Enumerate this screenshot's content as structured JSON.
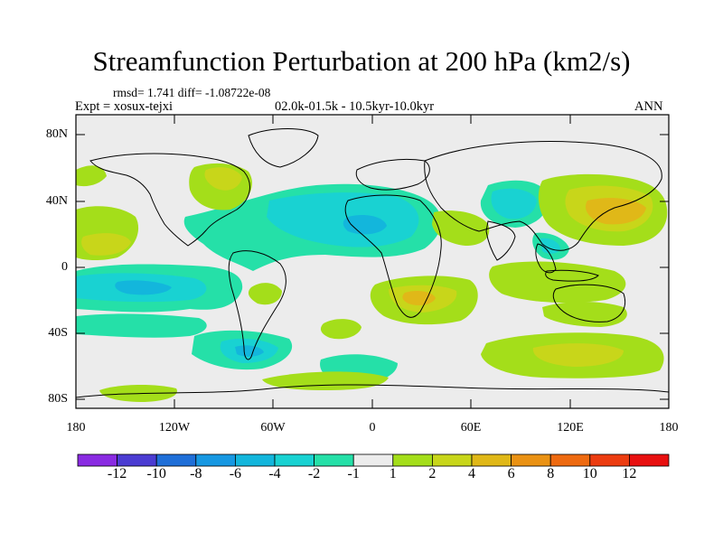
{
  "title": "Streamfunction Perturbation at 200 hPa (km2/s)",
  "stats_line": "rmsd= 1.741  diff= -1.08722e-08",
  "experiment": "Expt = xosux-tejxi",
  "period": "02.0k-01.5k - 10.5kyr-10.0kyr",
  "season": "ANN",
  "lat_labels": [
    "80N",
    "40N",
    "0",
    "40S",
    "80S"
  ],
  "lon_labels": [
    "180",
    "120W",
    "60W",
    "0",
    "60E",
    "120E",
    "180"
  ],
  "colorbar": {
    "labels": [
      "-12",
      "-10",
      "-8",
      "-6",
      "-4",
      "-2",
      "-1",
      "1",
      "2",
      "4",
      "6",
      "8",
      "10",
      "12"
    ],
    "colors": [
      "#8a2be2",
      "#4b3cd2",
      "#1f6fd8",
      "#1798e2",
      "#13b6dc",
      "#19d2d2",
      "#25e0a8",
      "#ececec",
      "#a4de1a",
      "#c8d61a",
      "#e0b818",
      "#ea9214",
      "#ee6a10",
      "#ec3c10",
      "#e81010"
    ]
  },
  "colors": {
    "land_outline": "#000000",
    "frame": "#000000",
    "near_zero": "#ececec"
  }
}
